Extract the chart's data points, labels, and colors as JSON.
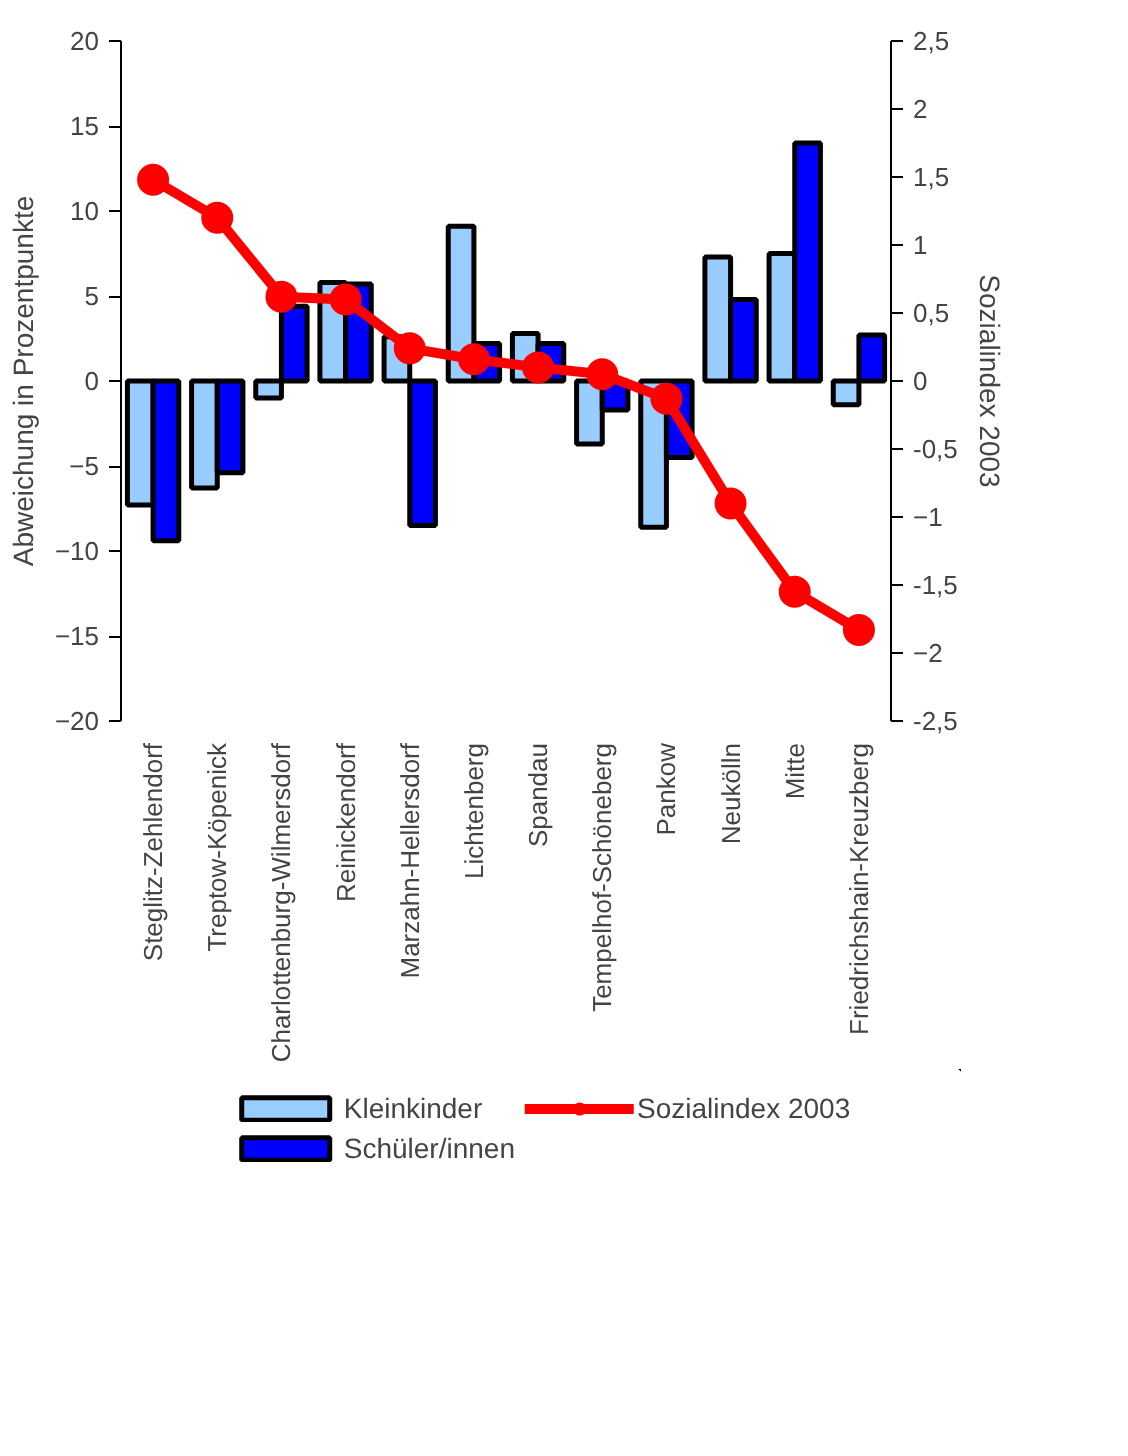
{
  "chart_data": {
    "type": "bar",
    "ylabel": "Abweichung in Prozentpunkte",
    "y2label": "Sozialindex 2003",
    "categories": [
      "Steglitz-Zehlendorf",
      "Treptow-Köpenick",
      "Charlottenburg-Wilmersdorf",
      "Reinickendorf",
      "Marzahn-Hellersdorf",
      "Lichtenberg",
      "Spandau",
      "Tempelhof-Schöneberg",
      "Pankow",
      "Neukölln",
      "Mitte",
      "Friedrichshain-Kreuzberg"
    ],
    "series": [
      {
        "name": "Kleinkinder",
        "color": "#99ccff",
        "values": [
          -7.3,
          -6.3,
          -1.0,
          5.8,
          2.6,
          9.1,
          2.8,
          -3.7,
          -8.6,
          7.3,
          7.5,
          -1.4
        ]
      },
      {
        "name": "Schüler/innen",
        "color": "#0000ff",
        "values": [
          -9.4,
          -5.4,
          4.4,
          5.7,
          -8.5,
          2.2,
          2.2,
          -1.7,
          -4.5,
          4.8,
          14.0,
          2.7
        ]
      },
      {
        "name": "Sozialindex 2003",
        "type": "line",
        "axis": "y2",
        "color": "#ff0000",
        "values": [
          1.48,
          1.2,
          0.62,
          0.6,
          0.24,
          0.16,
          0.1,
          0.05,
          -0.13,
          -0.9,
          -1.55,
          -1.83
        ]
      }
    ],
    "ylim": [
      -20,
      20
    ],
    "yticks": [
      -20,
      -15,
      -10,
      -5,
      0,
      5,
      10,
      15,
      20
    ],
    "y2lim": [
      -2.5,
      2.5
    ],
    "y2ticks": [
      {
        "value": -2.5,
        "label": "-2,5"
      },
      -2,
      {
        "value": -1.5,
        "label": "-1,5"
      },
      -1,
      {
        "value": -0.5,
        "label": "-0,5"
      },
      0,
      {
        "value": 0.5,
        "label": "0,5"
      },
      1,
      {
        "value": 1.5,
        "label": "1,5"
      },
      2,
      {
        "value": 2.5,
        "label": "2,5"
      }
    ],
    "marker": "circle",
    "line_style": "solid",
    "grid": false,
    "legend": "bottom"
  }
}
